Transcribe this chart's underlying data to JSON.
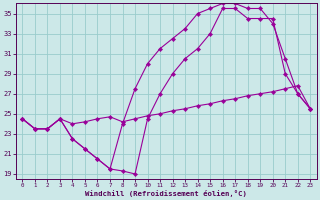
{
  "xlabel": "Windchill (Refroidissement éolien,°C)",
  "background_color": "#cce8e8",
  "line_color": "#990099",
  "grid_color": "#99cccc",
  "xlim": [
    -0.5,
    23.5
  ],
  "ylim": [
    18.5,
    36.0
  ],
  "yticks": [
    19,
    21,
    23,
    25,
    27,
    29,
    31,
    33,
    35
  ],
  "xticks": [
    0,
    1,
    2,
    3,
    4,
    5,
    6,
    7,
    8,
    9,
    10,
    11,
    12,
    13,
    14,
    15,
    16,
    17,
    18,
    19,
    20,
    21,
    22,
    23
  ],
  "series1_x": [
    0,
    1,
    2,
    3,
    4,
    5,
    6,
    7,
    8,
    9,
    10,
    11,
    12,
    13,
    14,
    15,
    16,
    17,
    18,
    19,
    20,
    21,
    22,
    23
  ],
  "series1_y": [
    24.5,
    23.5,
    23.5,
    24.5,
    24.0,
    24.2,
    24.5,
    24.7,
    24.2,
    24.5,
    24.8,
    25.0,
    25.3,
    25.5,
    25.8,
    26.0,
    26.3,
    26.5,
    26.8,
    27.0,
    27.2,
    27.5,
    27.8,
    25.5
  ],
  "series2_x": [
    0,
    1,
    2,
    3,
    4,
    5,
    6,
    7,
    8,
    9,
    10,
    11,
    12,
    13,
    14,
    15,
    16,
    17,
    18,
    19,
    20,
    21,
    22,
    23
  ],
  "series2_y": [
    24.5,
    23.5,
    23.5,
    24.5,
    22.5,
    21.5,
    20.5,
    19.5,
    19.3,
    19.0,
    24.5,
    27.0,
    29.0,
    30.5,
    31.5,
    33.0,
    35.5,
    35.5,
    34.5,
    34.5,
    34.5,
    29.0,
    27.0,
    25.5
  ],
  "series3_x": [
    0,
    1,
    2,
    3,
    4,
    5,
    6,
    7,
    8,
    9,
    10,
    11,
    12,
    13,
    14,
    15,
    16,
    17,
    18,
    19,
    20,
    21,
    22,
    23
  ],
  "series3_y": [
    24.5,
    23.5,
    23.5,
    24.5,
    22.5,
    21.5,
    20.5,
    19.5,
    24.0,
    27.5,
    30.0,
    31.5,
    32.5,
    33.5,
    35.0,
    35.5,
    36.0,
    36.0,
    35.5,
    35.5,
    34.0,
    30.5,
    27.0,
    25.5
  ]
}
